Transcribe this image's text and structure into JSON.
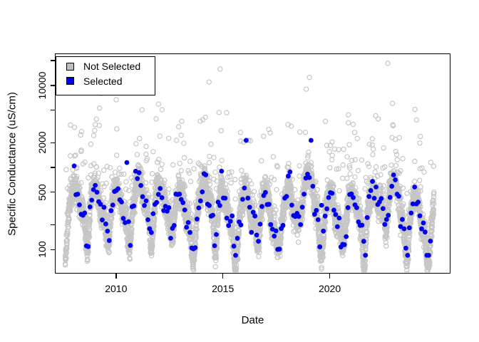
{
  "chart_data": {
    "type": "scatter",
    "title": "",
    "xlabel": "Date",
    "ylabel": "Specific Conductance (uS/cm)",
    "x_axis": {
      "min": 2007.17,
      "max": 2025.62,
      "ticks": [
        2010,
        2015,
        2020
      ],
      "tick_labels": [
        "2010",
        "2015",
        "2020"
      ]
    },
    "y_axis": {
      "scale": "log10",
      "min": 52,
      "max": 24000,
      "ticks": [
        100,
        200,
        500,
        1000,
        2000,
        5000,
        10000,
        20000
      ],
      "labeled_ticks": [
        100,
        500,
        2000,
        10000
      ],
      "tick_labels": [
        "100",
        "500",
        "2000",
        "10000"
      ]
    },
    "legend": {
      "position": "topleft",
      "entries": [
        {
          "label": "Not Selected",
          "color": "#BEBEBE",
          "marker": "square"
        },
        {
          "label": "Selected",
          "color": "#0000EE",
          "marker": "square"
        }
      ]
    },
    "series": [
      {
        "name": "Not Selected",
        "marker": "open-circle",
        "color": "#C6C6C6",
        "marker_radius_px": 3.1,
        "n_approx": 5950,
        "x_start": 2007.62,
        "x_end": 2024.88,
        "cadence_days": 1.06,
        "gen": {
          "seed": 42,
          "base_log10": 2.53,
          "interannual_sd": 0.09,
          "seasonal_amp": 0.16,
          "seasonal_phase": 0.03,
          "dip1": {
            "center": 0.63,
            "width": 0.085,
            "depth_min": 0.3,
            "depth_max": 0.6
          },
          "dip2": {
            "center": 0.3,
            "width": 0.06,
            "depth_max": 0.3
          },
          "noise_sd": 0.075,
          "storm_prob": 0.1,
          "storm_base": 0.12,
          "storm_amp": 0.95,
          "storm_pow": 3,
          "elevated_periods": [
            {
              "from": 2010.9,
              "to": 2011.6,
              "boost": 0.12
            },
            {
              "from": 2014.1,
              "to": 2014.6,
              "boost": 0.1
            },
            {
              "from": 2018.55,
              "to": 2019.45,
              "boost": 0.22
            },
            {
              "from": 2022.3,
              "to": 2023.3,
              "boost": 0.15
            }
          ],
          "outliers": [
            {
              "x": 2014.87,
              "y": 15800
            },
            {
              "x": 2022.72,
              "y": 18600
            },
            {
              "x": 2018.9,
              "y": 9000
            },
            {
              "x": 2014.35,
              "y": 11000
            },
            {
              "x": 2009.3,
              "y": 8000
            },
            {
              "x": 2019.05,
              "y": 12500
            }
          ]
        }
      },
      {
        "name": "Selected",
        "marker": "filled-circle",
        "color": "#0000EE",
        "marker_radius_px": 3.4,
        "n_approx": 204,
        "x_start": 2008.04,
        "x_end": 2024.78,
        "cadence_days": 30,
        "gen": {
          "seed": 7,
          "noise_sd": 0.09,
          "storm_prob": 0.06,
          "storm_base": 0.1,
          "storm_amp": 0.6,
          "clamp_log10": [
            1.93,
            3.33
          ]
        }
      }
    ],
    "description": "Daily specific conductance observations ~2008-2024: dense gray cloud of unselected daily values with a seasonal sawtooth pattern, typical band 150-900 uS/cm, narrow late-summer dips to ~60-100 uS/cm each year, and storm outliers up to ~19000 uS/cm; about 200 blue selected samples at roughly monthly intervals ranging ~85-2100 uS/cm."
  }
}
